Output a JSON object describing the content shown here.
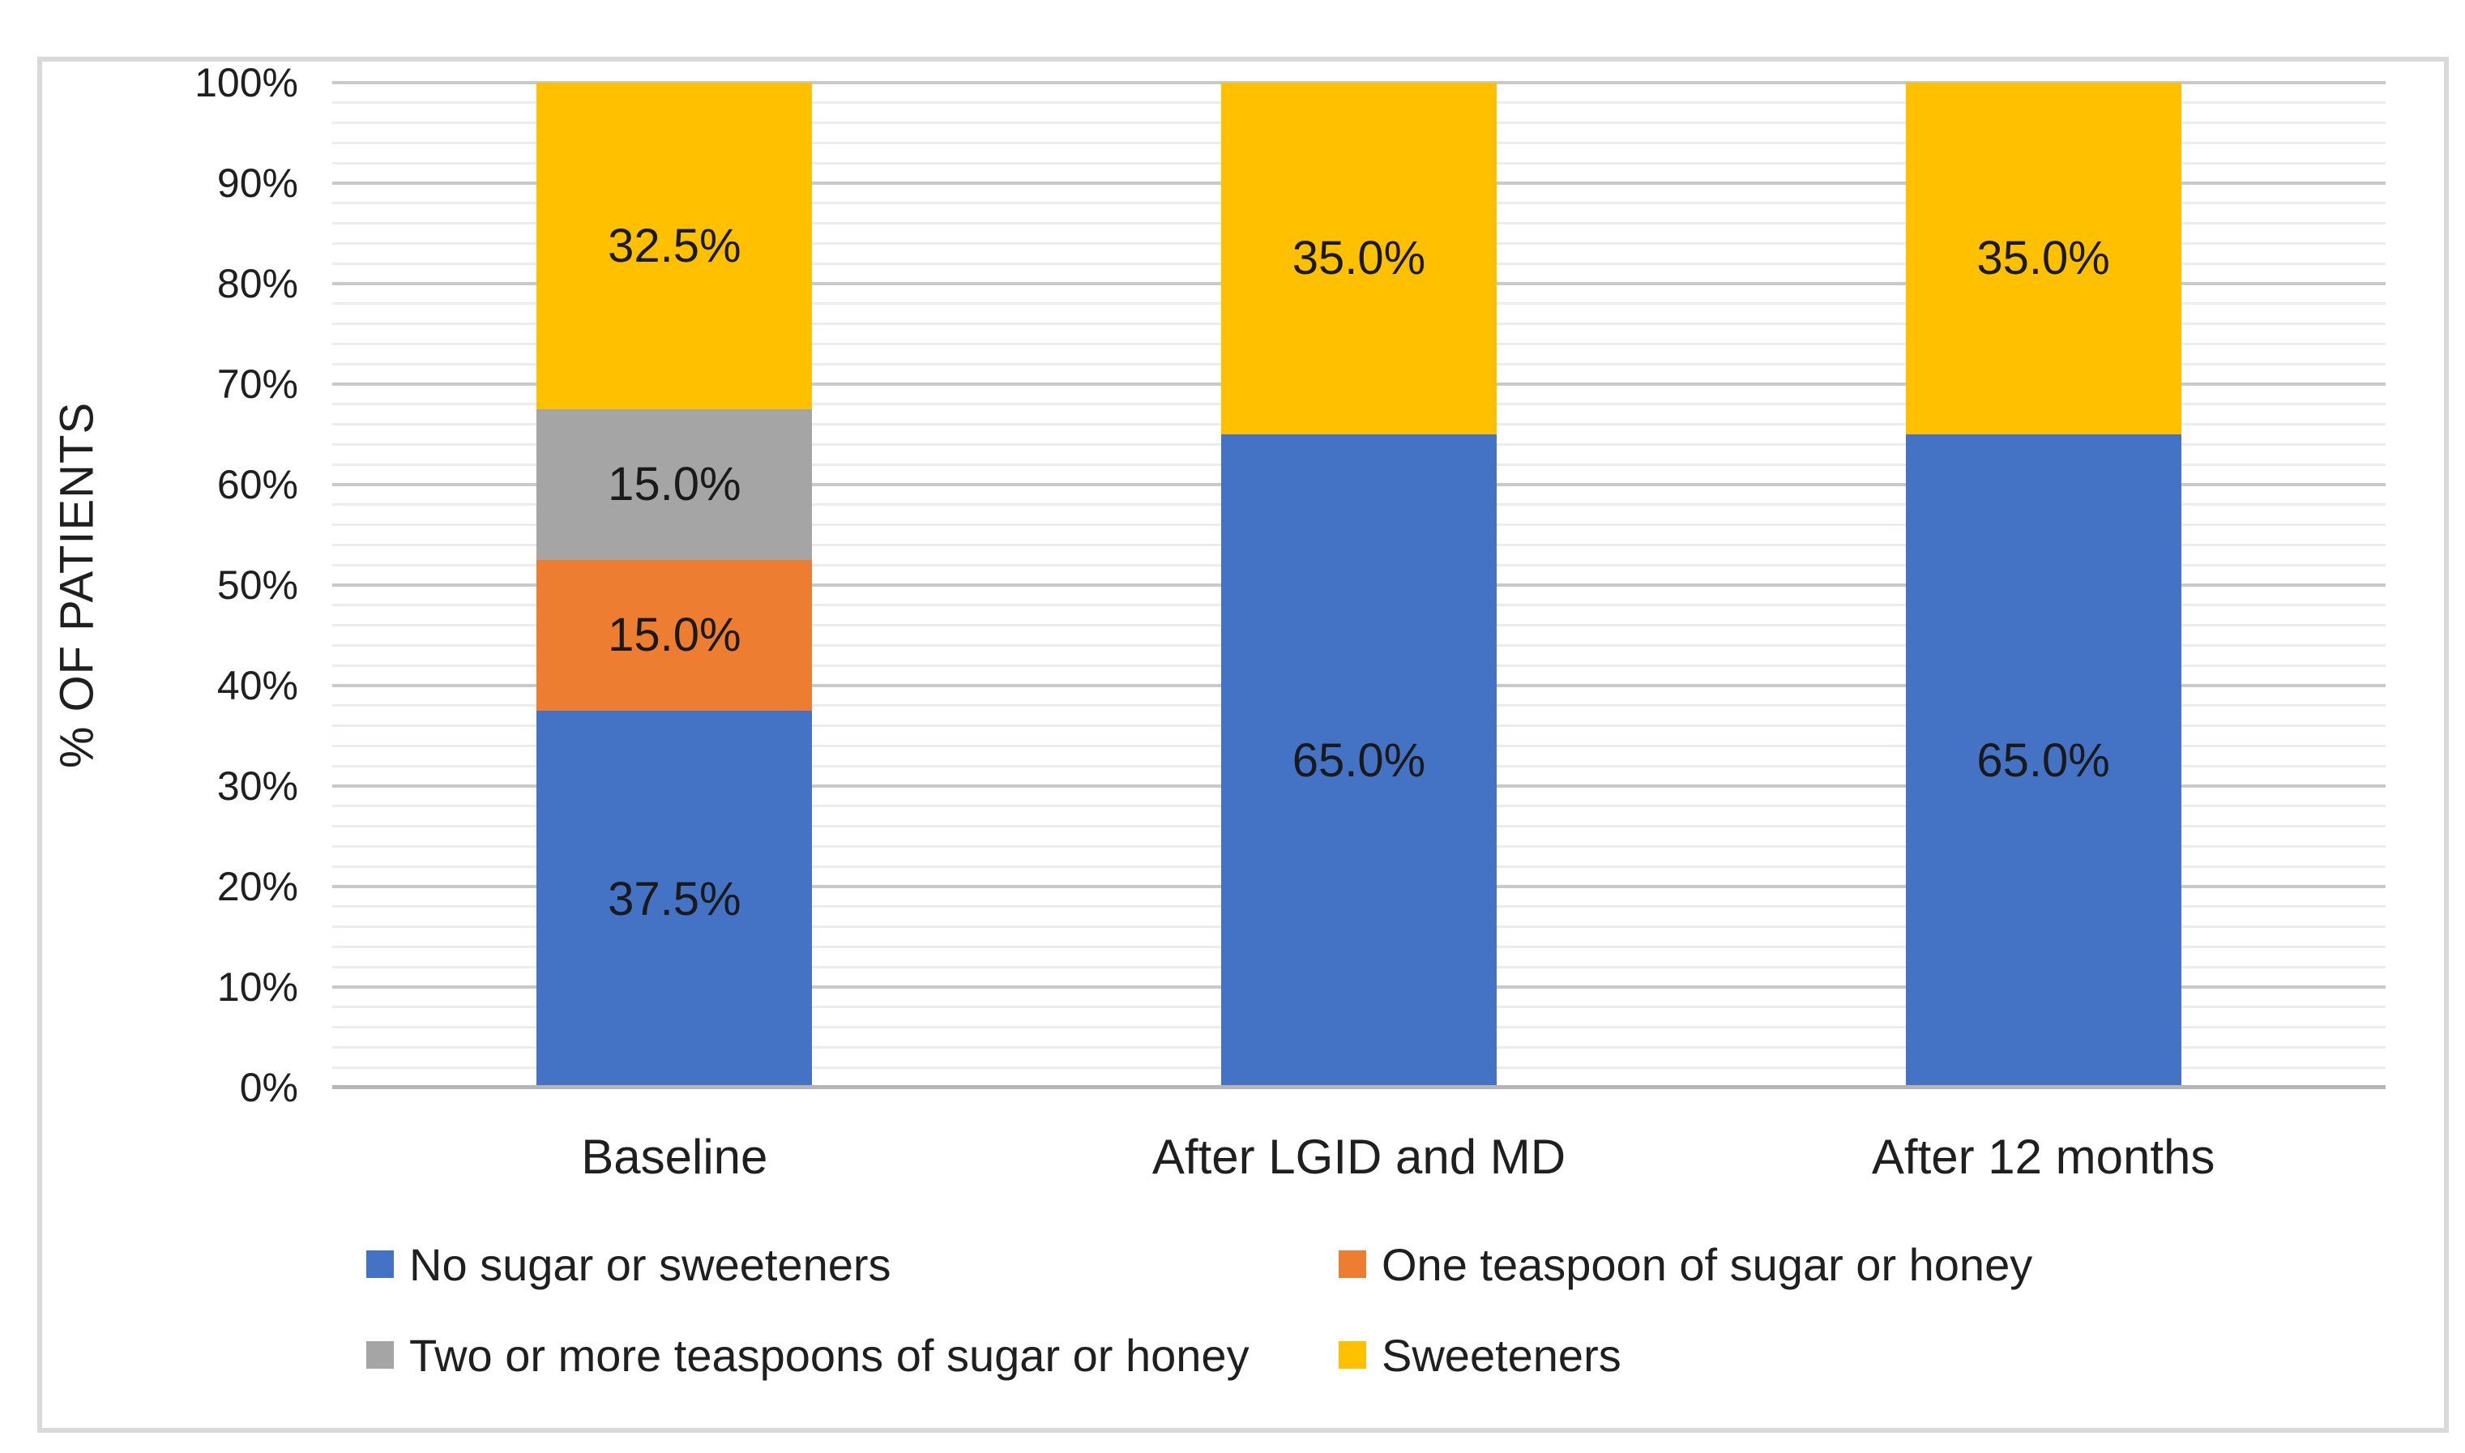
{
  "frame": {
    "border_color": "#d9d9d9",
    "background": "#ffffff"
  },
  "chart_data": {
    "type": "bar",
    "stacked": true,
    "title": "",
    "xlabel": "",
    "ylabel": "% OF PATIENTS",
    "categories": [
      "Baseline",
      "After LGID and MD",
      "After 12 months"
    ],
    "series": [
      {
        "name": "No sugar or sweeteners",
        "color": "#4472C4",
        "values": [
          37.5,
          65.0,
          65.0
        ]
      },
      {
        "name": "One teaspoon of sugar or honey",
        "color": "#ED7D31",
        "values": [
          15.0,
          0.0,
          0.0
        ]
      },
      {
        "name": "Two or more teaspoons of sugar or honey",
        "color": "#A5A5A5",
        "values": [
          15.0,
          0.0,
          0.0
        ]
      },
      {
        "name": "Sweeteners",
        "color": "#FFC000",
        "values": [
          32.5,
          35.0,
          35.0
        ]
      }
    ],
    "segment_labels": [
      [
        "37.5%",
        "65.0%",
        "65.0%"
      ],
      [
        "15.0%",
        "",
        ""
      ],
      [
        "15.0%",
        "",
        ""
      ],
      [
        "32.5%",
        "35.0%",
        "35.0%"
      ]
    ],
    "y_axis": {
      "min": 0,
      "max": 100,
      "major_step": 10,
      "minor_step": 2,
      "ticks": [
        "0%",
        "10%",
        "20%",
        "30%",
        "40%",
        "50%",
        "60%",
        "70%",
        "80%",
        "90%",
        "100%"
      ]
    },
    "legend": {
      "position": "bottom",
      "rows": [
        [
          0,
          1
        ],
        [
          2,
          3
        ]
      ]
    },
    "grid": {
      "major_color": "#c9c9c9",
      "minor_color": "#ececec",
      "axis_line_color": "#b5b5b5"
    },
    "colors": {
      "axis_text": "#1f1f1f",
      "data_label": "#1a1a1a"
    }
  }
}
